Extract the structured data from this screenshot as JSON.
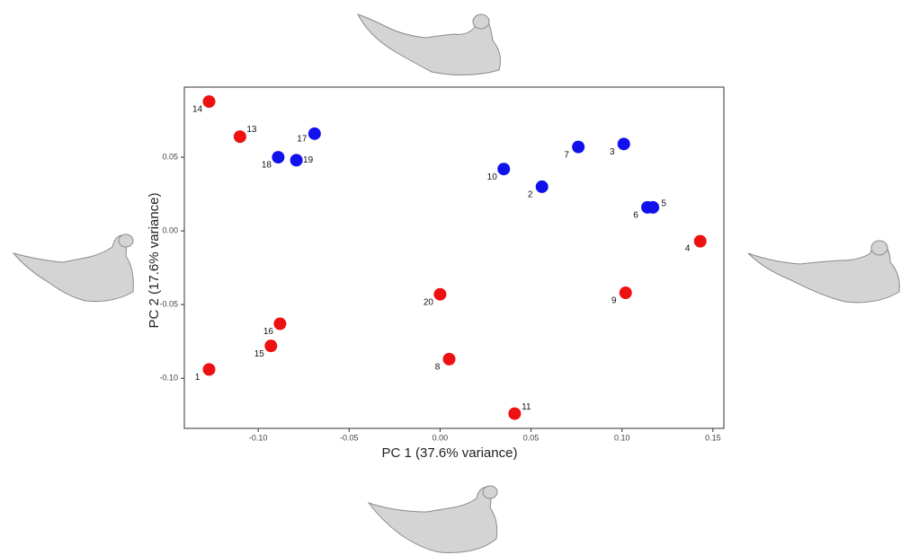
{
  "chart_data": {
    "type": "scatter",
    "x_label": "PC 1 (37.6% variance)",
    "y_label": "PC 2 (17.6% variance)",
    "xlim": [
      -0.1406,
      0.156
    ],
    "ylim": [
      -0.134,
      0.0976
    ],
    "xticks": [
      {
        "value": -0.1,
        "label": "-0.10"
      },
      -0.05,
      {
        "value": 0,
        "label": "0.00"
      },
      0.05,
      {
        "value": 0.1,
        "label": "0.10"
      },
      0.15
    ],
    "yticks": [
      0.05,
      {
        "value": 0,
        "label": "0.00"
      },
      -0.05,
      {
        "value": -0.1,
        "label": "-0.10"
      }
    ],
    "grid": false,
    "series": [
      {
        "color": "#ee1111",
        "labels": [
          "14",
          "13",
          "4",
          "9",
          "20",
          "16",
          "15",
          "1",
          "8",
          "11"
        ],
        "x": [
          -0.127,
          -0.11,
          0.143,
          0.102,
          0.0,
          -0.088,
          -0.093,
          -0.127,
          0.005,
          0.041
        ],
        "values": [
          0.0878,
          0.064,
          -0.007,
          -0.042,
          -0.043,
          -0.063,
          -0.078,
          -0.094,
          -0.087,
          -0.124
        ]
      },
      {
        "color": "#1111ee",
        "labels": [
          "17",
          "18",
          "19",
          "10",
          "2",
          "7",
          "3",
          "6",
          "5"
        ],
        "x": [
          -0.069,
          -0.089,
          -0.079,
          0.035,
          0.056,
          0.076,
          0.101,
          0.114,
          0.117
        ],
        "values": [
          0.066,
          0.05,
          0.048,
          0.042,
          0.03,
          0.057,
          0.059,
          0.016,
          0.016
        ]
      }
    ]
  }
}
